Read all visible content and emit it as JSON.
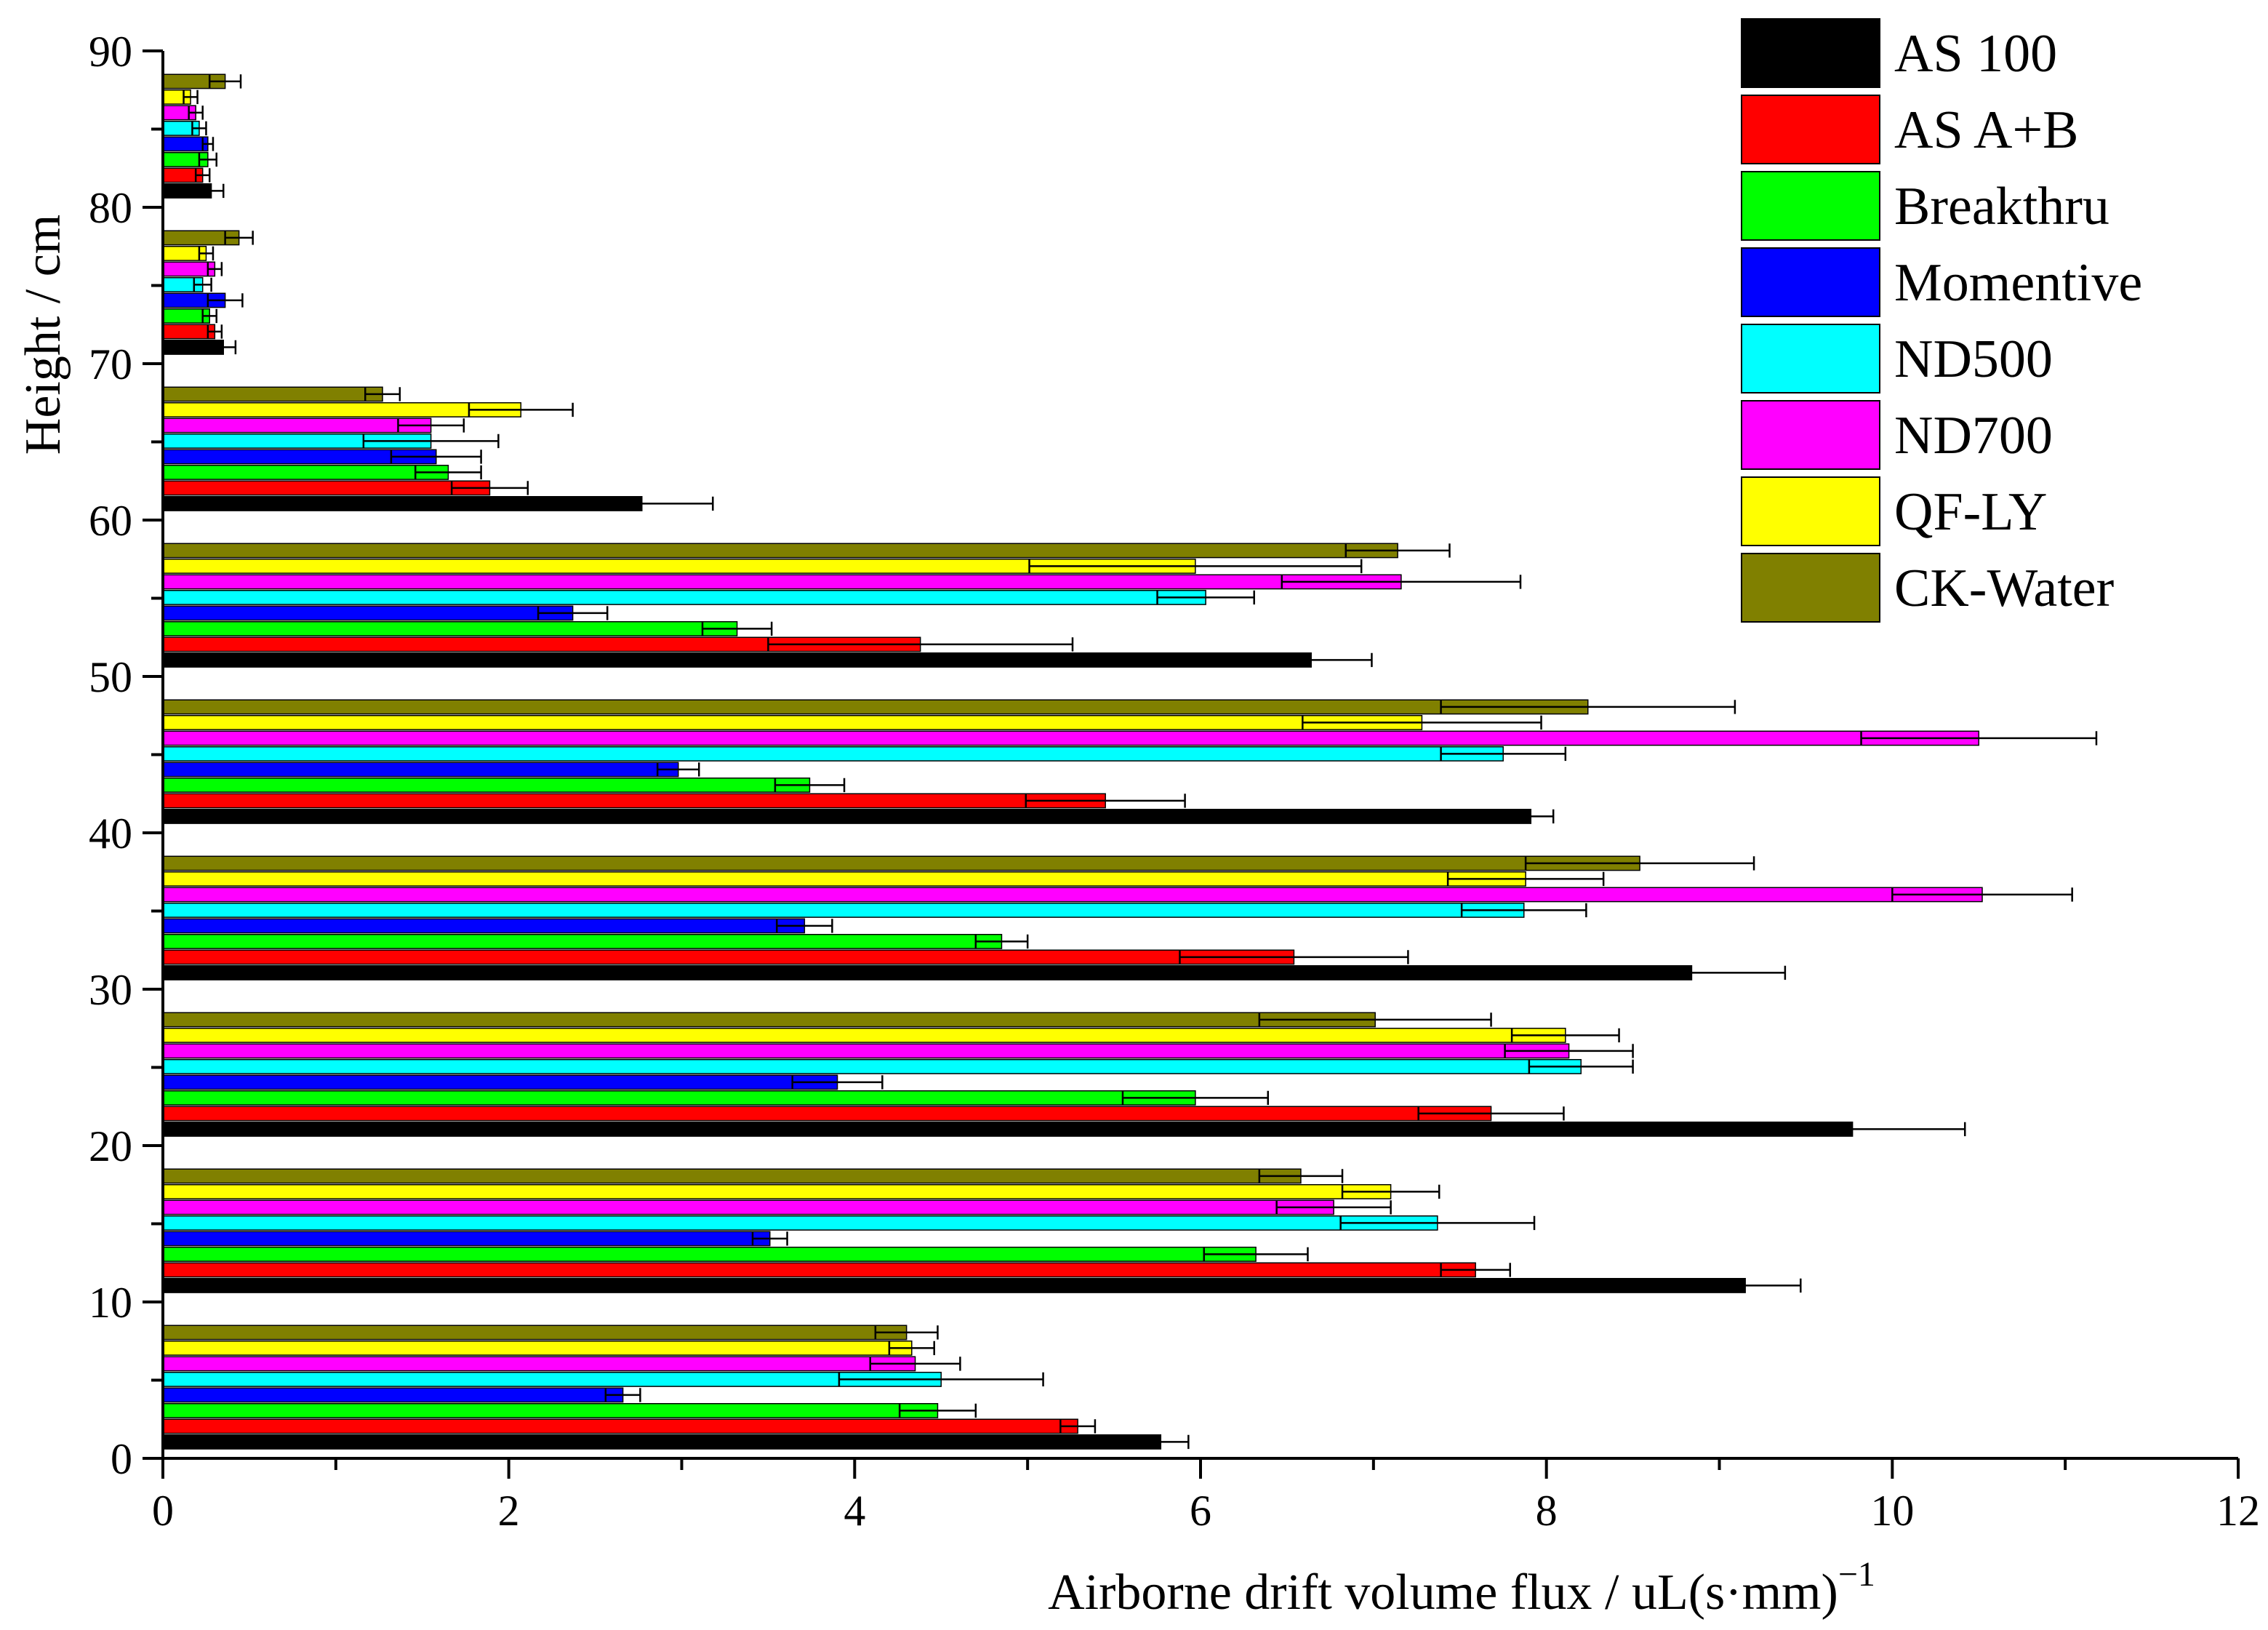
{
  "chart_data": {
    "type": "bar",
    "orientation": "horizontal",
    "title": "",
    "xlabel": "Airborne drift volume flux / uL(s·mm)",
    "xlabel_superscript": "−1",
    "ylabel": "Height / cm",
    "xlim": [
      0,
      12
    ],
    "ylim": [
      0,
      90
    ],
    "x_ticks": [
      "0",
      "2",
      "4",
      "6",
      "8",
      "10",
      "12"
    ],
    "y_ticks": [
      "0",
      "10",
      "20",
      "30",
      "40",
      "50",
      "60",
      "70",
      "80",
      "90"
    ],
    "legend_position": "top-right",
    "categories": [
      "10",
      "20",
      "30",
      "40",
      "50",
      "60",
      "70",
      "80",
      "90"
    ],
    "series": [
      {
        "name": "AS 100",
        "color": "#000000",
        "values": [
          5.77,
          9.15,
          9.77,
          8.84,
          7.91,
          6.64,
          2.77,
          0.35,
          0.28
        ],
        "errors": [
          0.16,
          0.32,
          0.65,
          0.54,
          0.13,
          0.35,
          0.41,
          0.07,
          0.07
        ]
      },
      {
        "name": "AS A+B",
        "color": "#ff0000",
        "values": [
          5.29,
          7.59,
          7.68,
          6.54,
          5.45,
          4.38,
          1.89,
          0.3,
          0.23
        ],
        "errors": [
          0.1,
          0.2,
          0.42,
          0.66,
          0.46,
          0.88,
          0.22,
          0.04,
          0.04
        ]
      },
      {
        "name": "Breakthru",
        "color": "#00ff00",
        "values": [
          4.48,
          6.32,
          5.97,
          4.85,
          3.74,
          3.32,
          1.65,
          0.27,
          0.26
        ],
        "errors": [
          0.22,
          0.3,
          0.42,
          0.15,
          0.2,
          0.2,
          0.19,
          0.04,
          0.05
        ]
      },
      {
        "name": "Momentive",
        "color": "#0000ff",
        "values": [
          2.66,
          3.51,
          3.9,
          3.71,
          2.98,
          2.37,
          1.58,
          0.36,
          0.26
        ],
        "errors": [
          0.1,
          0.1,
          0.26,
          0.16,
          0.12,
          0.2,
          0.26,
          0.1,
          0.03
        ]
      },
      {
        "name": "ND500",
        "color": "#00ffff",
        "values": [
          4.5,
          7.37,
          8.2,
          7.87,
          7.75,
          6.03,
          1.55,
          0.23,
          0.21
        ],
        "errors": [
          0.59,
          0.56,
          0.3,
          0.36,
          0.36,
          0.28,
          0.39,
          0.05,
          0.04
        ]
      },
      {
        "name": "ND700",
        "color": "#ff00ff",
        "values": [
          4.35,
          6.77,
          8.13,
          10.52,
          10.5,
          7.16,
          1.55,
          0.3,
          0.19
        ],
        "errors": [
          0.26,
          0.33,
          0.37,
          0.52,
          0.68,
          0.69,
          0.19,
          0.04,
          0.04
        ]
      },
      {
        "name": "QF-LY",
        "color": "#ffff00",
        "values": [
          4.33,
          7.1,
          8.11,
          7.88,
          7.28,
          5.97,
          2.07,
          0.25,
          0.16
        ],
        "errors": [
          0.13,
          0.28,
          0.31,
          0.45,
          0.69,
          0.96,
          0.3,
          0.04,
          0.04
        ]
      },
      {
        "name": "CK-Water",
        "color": "#808000",
        "values": [
          4.3,
          6.58,
          7.01,
          8.54,
          8.24,
          7.14,
          1.27,
          0.44,
          0.36
        ],
        "errors": [
          0.18,
          0.24,
          0.67,
          0.66,
          0.85,
          0.3,
          0.1,
          0.08,
          0.09
        ]
      }
    ]
  }
}
